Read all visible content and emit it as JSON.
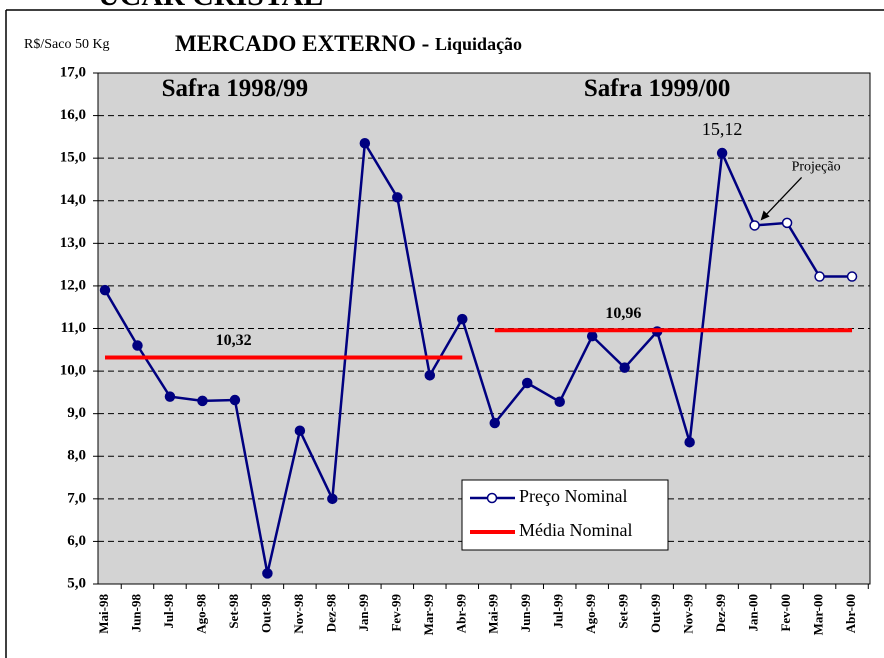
{
  "chart_data": {
    "type": "line",
    "supertitle": "UCAR CRISTAL",
    "unit_label": "R$/Saco 50 Kg",
    "title": "MERCADO EXTERNO - ",
    "title_suffix": "Liquidação",
    "categories": [
      "Mai-98",
      "Jun-98",
      "Jul-98",
      "Ago-98",
      "Set-98",
      "Out-98",
      "Nov-98",
      "Dez-98",
      "Jan-99",
      "Fev-99",
      "Mar-99",
      "Abr-99",
      "Mai-99",
      "Jun-99",
      "Jul-99",
      "Ago-99",
      "Set-99",
      "Out-99",
      "Nov-99",
      "Dez-99",
      "Jan-00",
      "Fev-00",
      "Mar-00",
      "Abr-00"
    ],
    "series": [
      {
        "name": "Preço Nominal",
        "color": "#000080",
        "values": [
          11.9,
          10.6,
          9.4,
          9.3,
          9.32,
          5.25,
          8.6,
          7.0,
          15.35,
          14.08,
          9.9,
          11.22,
          8.78,
          9.72,
          9.28,
          10.82,
          10.08,
          10.93,
          8.33,
          15.12,
          13.42,
          13.48,
          12.22,
          12.22
        ],
        "marker_fills": [
          "#000080",
          "#000080",
          "#000080",
          "#000080",
          "#000080",
          "#000080",
          "#000080",
          "#000080",
          "#000080",
          "#000080",
          "#000080",
          "#000080",
          "#000080",
          "#000080",
          "#000080",
          "#000080",
          "#000080",
          "#000080",
          "#000080",
          "#000080",
          "#ffffff",
          "#ffffff",
          "#ffffff",
          "#ffffff"
        ],
        "data_labels": [
          {
            "category": "Dez-99",
            "label": "15,12"
          }
        ]
      },
      {
        "name": "Média Nominal",
        "color": "#ff0000",
        "segments": [
          {
            "value": 10.32,
            "value_label": "10,32",
            "start": "Mai-98",
            "end": "Abr-99"
          },
          {
            "value": 10.96,
            "value_label": "10,96",
            "start": "Mai-99",
            "end": "Abr-00"
          }
        ]
      }
    ],
    "annotations": [
      {
        "text": "Safra 1998/99",
        "category": "Set-98",
        "y": 16.6
      },
      {
        "text": "Safra 1999/00",
        "category": "Out-99",
        "y": 16.6
      },
      {
        "text": "Projeção",
        "category": "Jan-00",
        "arrow_to": 13.42
      }
    ],
    "ylim": [
      5,
      17
    ],
    "yticks": [
      {
        "value": 5,
        "label": "5,0"
      },
      {
        "value": 6,
        "label": "6,0"
      },
      {
        "value": 7,
        "label": "7,0"
      },
      {
        "value": 8,
        "label": "8,0"
      },
      {
        "value": 9,
        "label": "9,0"
      },
      {
        "value": 10,
        "label": "10,0"
      },
      {
        "value": 11,
        "label": "11,0"
      },
      {
        "value": 12,
        "label": "12,0"
      },
      {
        "value": 13,
        "label": "13,0"
      },
      {
        "value": 14,
        "label": "14,0"
      },
      {
        "value": 15,
        "label": "15,0"
      },
      {
        "value": 16,
        "label": "16,0"
      },
      {
        "value": 17,
        "label": "17,0"
      }
    ],
    "grid": true,
    "plot_background": "#d3d3d3"
  }
}
